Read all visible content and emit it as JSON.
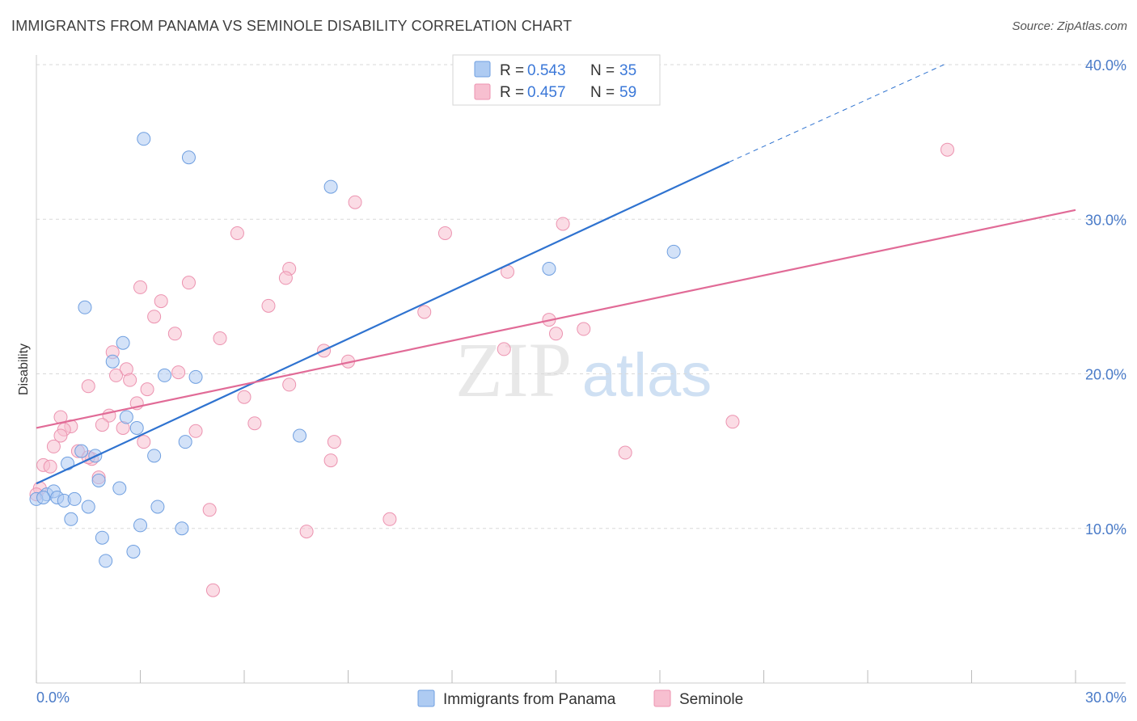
{
  "header": {
    "title": "IMMIGRANTS FROM PANAMA VS SEMINOLE DISABILITY CORRELATION CHART",
    "source": "Source: ZipAtlas.com"
  },
  "watermark": {
    "zip": "ZIP",
    "atlas": "atlas"
  },
  "legend": {
    "rows": [
      {
        "r_label": "R =",
        "r_value": "0.543",
        "n_label": "N =",
        "n_value": "35"
      },
      {
        "r_label": "R =",
        "r_value": "0.457",
        "n_label": "N =",
        "n_value": "59"
      }
    ]
  },
  "bottom_legend": {
    "items": [
      {
        "label": "Immigrants from Panama"
      },
      {
        "label": "Seminole"
      }
    ]
  },
  "colors": {
    "blue_fill": "#aecbf2",
    "blue_stroke": "#6f9fe0",
    "blue_line": "#2f73d0",
    "pink_fill": "#f7bfd0",
    "pink_stroke": "#ec93b0",
    "pink_line": "#e16b97",
    "grid": "#d9d9d9",
    "tick_label": "#4a7bc8"
  },
  "chart_data": {
    "type": "scatter",
    "xlabel": "",
    "ylabel": "Disability",
    "xlim": [
      0,
      30
    ],
    "ylim": [
      0,
      40
    ],
    "x_tick_labels": [
      "0.0%",
      "30.0%"
    ],
    "y_ticks": [
      10,
      20,
      30,
      40
    ],
    "y_tick_labels": [
      "10.0%",
      "20.0%",
      "30.0%",
      "40.0%"
    ],
    "grid": true,
    "legend_position": "top-center",
    "series": [
      {
        "name": "Immigrants from Panama",
        "color": "blue",
        "points": [
          [
            3.1,
            35.2
          ],
          [
            4.4,
            34.0
          ],
          [
            8.5,
            32.1
          ],
          [
            14.8,
            26.8
          ],
          [
            18.4,
            27.9
          ],
          [
            1.4,
            24.3
          ],
          [
            2.5,
            22.0
          ],
          [
            2.2,
            20.8
          ],
          [
            3.7,
            19.9
          ],
          [
            4.6,
            19.8
          ],
          [
            2.6,
            17.2
          ],
          [
            2.9,
            16.5
          ],
          [
            4.3,
            15.6
          ],
          [
            7.6,
            16.0
          ],
          [
            1.3,
            15.0
          ],
          [
            1.7,
            14.7
          ],
          [
            3.4,
            14.7
          ],
          [
            0.9,
            14.2
          ],
          [
            1.8,
            13.1
          ],
          [
            2.4,
            12.6
          ],
          [
            0.3,
            12.2
          ],
          [
            0.5,
            12.4
          ],
          [
            0.6,
            12.0
          ],
          [
            0.8,
            11.8
          ],
          [
            1.1,
            11.9
          ],
          [
            0.0,
            11.9
          ],
          [
            0.2,
            12.0
          ],
          [
            1.5,
            11.4
          ],
          [
            3.5,
            11.4
          ],
          [
            1.0,
            10.6
          ],
          [
            3.0,
            10.2
          ],
          [
            4.2,
            10.0
          ],
          [
            1.9,
            9.4
          ],
          [
            2.8,
            8.5
          ],
          [
            2.0,
            7.9
          ]
        ],
        "trend": {
          "x0": 0,
          "y0": 12.9,
          "x1": 20.0,
          "y1": 33.7,
          "dash_to_x": 26.2,
          "dash_to_y": 40.0
        }
      },
      {
        "name": "Seminole",
        "color": "pink",
        "points": [
          [
            26.3,
            34.5
          ],
          [
            9.2,
            31.1
          ],
          [
            5.8,
            29.1
          ],
          [
            11.8,
            29.1
          ],
          [
            15.2,
            29.7
          ],
          [
            7.3,
            26.8
          ],
          [
            7.2,
            26.2
          ],
          [
            13.6,
            26.6
          ],
          [
            3.0,
            25.6
          ],
          [
            4.4,
            25.9
          ],
          [
            3.6,
            24.7
          ],
          [
            6.7,
            24.4
          ],
          [
            3.4,
            23.7
          ],
          [
            11.2,
            24.0
          ],
          [
            14.8,
            23.5
          ],
          [
            15.8,
            22.9
          ],
          [
            4.0,
            22.6
          ],
          [
            5.3,
            22.3
          ],
          [
            15.0,
            22.6
          ],
          [
            2.2,
            21.4
          ],
          [
            8.3,
            21.5
          ],
          [
            13.5,
            21.6
          ],
          [
            9.0,
            20.8
          ],
          [
            2.6,
            20.3
          ],
          [
            4.1,
            20.1
          ],
          [
            2.3,
            19.9
          ],
          [
            2.7,
            19.6
          ],
          [
            7.3,
            19.3
          ],
          [
            1.5,
            19.2
          ],
          [
            3.2,
            19.0
          ],
          [
            6.0,
            18.5
          ],
          [
            2.9,
            18.1
          ],
          [
            2.1,
            17.3
          ],
          [
            0.7,
            17.2
          ],
          [
            1.0,
            16.6
          ],
          [
            6.3,
            16.8
          ],
          [
            1.9,
            16.7
          ],
          [
            2.5,
            16.5
          ],
          [
            20.1,
            16.9
          ],
          [
            0.8,
            16.4
          ],
          [
            4.6,
            16.3
          ],
          [
            0.7,
            16.0
          ],
          [
            3.1,
            15.6
          ],
          [
            8.6,
            15.6
          ],
          [
            0.5,
            15.3
          ],
          [
            1.2,
            15.0
          ],
          [
            17.0,
            14.9
          ],
          [
            1.6,
            14.5
          ],
          [
            1.5,
            14.6
          ],
          [
            8.5,
            14.4
          ],
          [
            0.2,
            14.1
          ],
          [
            0.4,
            14.0
          ],
          [
            1.8,
            13.3
          ],
          [
            0.1,
            12.6
          ],
          [
            5.0,
            11.2
          ],
          [
            10.2,
            10.6
          ],
          [
            7.8,
            9.8
          ],
          [
            5.1,
            6.0
          ],
          [
            0.0,
            12.2
          ]
        ],
        "trend": {
          "x0": 0,
          "y0": 16.5,
          "x1": 30.0,
          "y1": 30.6
        }
      }
    ]
  }
}
